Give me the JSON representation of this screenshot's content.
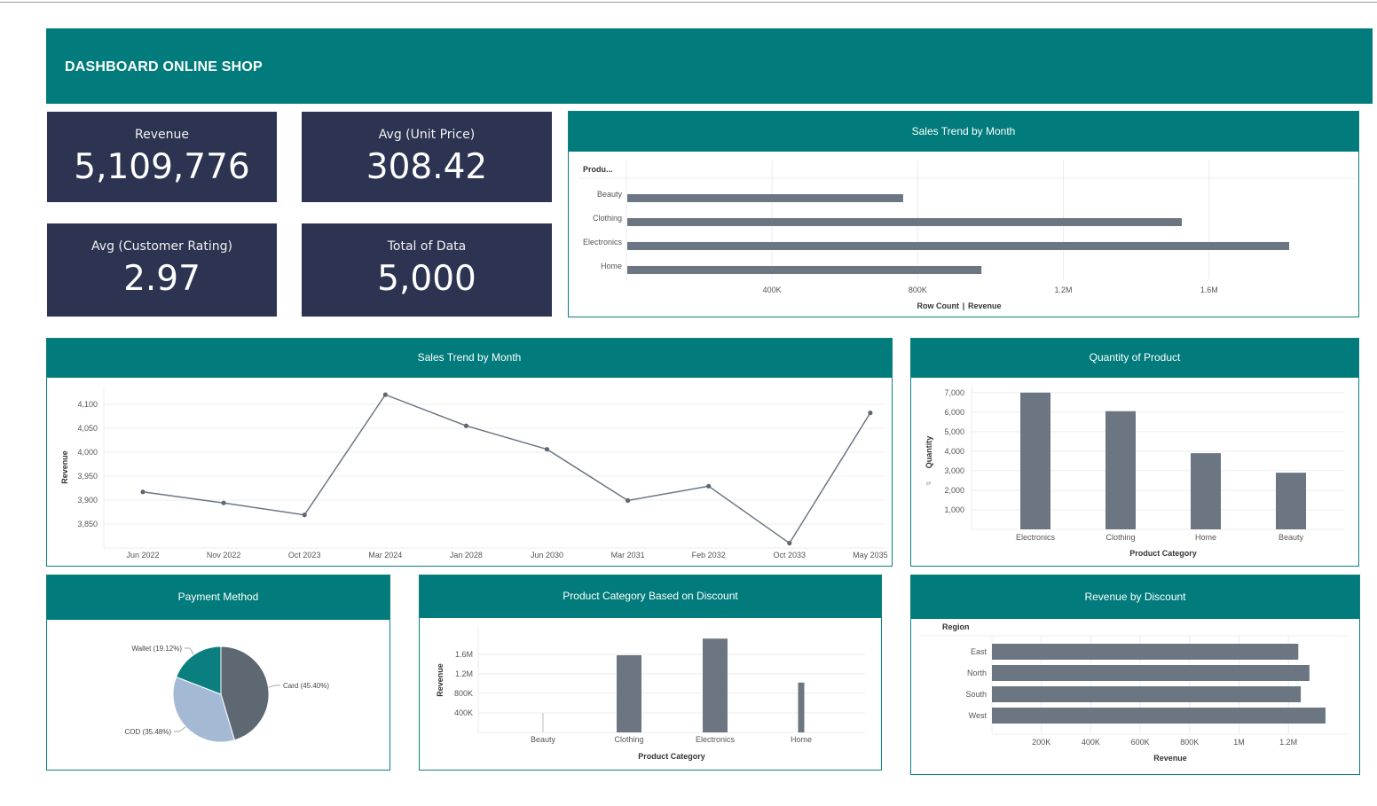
{
  "header": {
    "title": "DASHBOARD ONLINE SHOP"
  },
  "kpis": [
    {
      "label": "Revenue",
      "value": "5,109,776"
    },
    {
      "label": "Avg (Unit Price)",
      "value": "308.42"
    },
    {
      "label": "Avg (Customer Rating)",
      "value": "2.97"
    },
    {
      "label": "Total of Data",
      "value": "5,000"
    }
  ],
  "panels": {
    "top_right": "Sales Trend by Month",
    "line": "Sales Trend by Month",
    "qty": "Quantity of Product",
    "payment": "Payment Method",
    "discount": "Product Category Based on Discount",
    "revenue_discount": "Revenue by Discount"
  },
  "colors": {
    "teal": "#017b7b",
    "navy": "#2d3452",
    "bar": "#6b7682",
    "pie_card": "#5e6873",
    "pie_cod": "#a4b9d3",
    "pie_wallet": "#0b7f80"
  },
  "chart_data": [
    {
      "id": "category_revenue",
      "type": "bar",
      "orientation": "horizontal",
      "row_header": "Produ...",
      "categories": [
        "Beauty",
        "Clothing",
        "Electronics",
        "Home"
      ],
      "values": [
        760000,
        1525000,
        1820000,
        975000
      ],
      "xticks": [
        "400K",
        "800K",
        "1.2M",
        "1.6M"
      ],
      "xtick_values": [
        400000,
        800000,
        1200000,
        1600000
      ],
      "xlim": [
        0,
        2010000
      ],
      "xlabel_parts": [
        "Row Count",
        "|",
        "Revenue"
      ]
    },
    {
      "id": "monthly_trend",
      "type": "line",
      "x": [
        "Jun 2022",
        "Nov 2022",
        "Oct 2023",
        "Mar 2024",
        "Jan 2028",
        "Jun 2030",
        "Mar 2031",
        "Feb 2032",
        "Oct 2033",
        "May 2035"
      ],
      "values": [
        3917,
        3894,
        3869,
        4120,
        4055,
        4006,
        3899,
        3929,
        3810,
        4082
      ],
      "ylabel": "Revenue",
      "yticks": [
        3850,
        3900,
        3950,
        4000,
        4050,
        4100
      ],
      "ytick_labels": [
        "3,850",
        "3,900",
        "3,950",
        "4,000",
        "4,050",
        "4,100"
      ],
      "ylim": [
        3800,
        4135
      ]
    },
    {
      "id": "quantity_by_category",
      "type": "bar",
      "categories": [
        "Electronics",
        "Clothing",
        "Home",
        "Beauty"
      ],
      "values": [
        7000,
        6050,
        3900,
        2900
      ],
      "ylabel": "Quantity",
      "xlabel": "Product Category",
      "yticks": [
        1000,
        2000,
        3000,
        4000,
        5000,
        6000,
        7000
      ],
      "ytick_labels": [
        "1,000",
        "2,000",
        "3,000",
        "4,000",
        "5,000",
        "6,000",
        "7,000"
      ],
      "ylim": [
        0,
        7400
      ]
    },
    {
      "id": "payment_method",
      "type": "pie",
      "labels": [
        "Card (45.40%)",
        "COD (35.48%)",
        "Wallet (19.12%)"
      ],
      "values": [
        45.4,
        35.48,
        19.12
      ]
    },
    {
      "id": "category_discount",
      "type": "bar",
      "categories": [
        "Beauty",
        "Clothing",
        "Electronics",
        "Home"
      ],
      "values": [
        400000,
        1580000,
        1920000,
        1020000
      ],
      "bar_style": [
        "line",
        "bar",
        "bar",
        "narrow"
      ],
      "ylabel": "Revenue",
      "xlabel": "Product Category",
      "yticks": [
        400000,
        800000,
        1200000,
        1600000
      ],
      "ytick_labels": [
        "400K",
        "800K",
        "1.2M",
        "1.6M"
      ],
      "ylim": [
        0,
        2160000
      ]
    },
    {
      "id": "revenue_by_region",
      "type": "bar",
      "orientation": "horizontal",
      "row_header": "Region",
      "categories": [
        "East",
        "North",
        "South",
        "West"
      ],
      "values": [
        1240000,
        1285000,
        1250000,
        1350000
      ],
      "xlabel": "Revenue",
      "xticks": [
        "200K",
        "400K",
        "600K",
        "800K",
        "1M",
        "1.2M"
      ],
      "xtick_values": [
        200000,
        400000,
        600000,
        800000,
        1000000,
        1200000
      ],
      "xlim": [
        0,
        1440000
      ]
    }
  ]
}
